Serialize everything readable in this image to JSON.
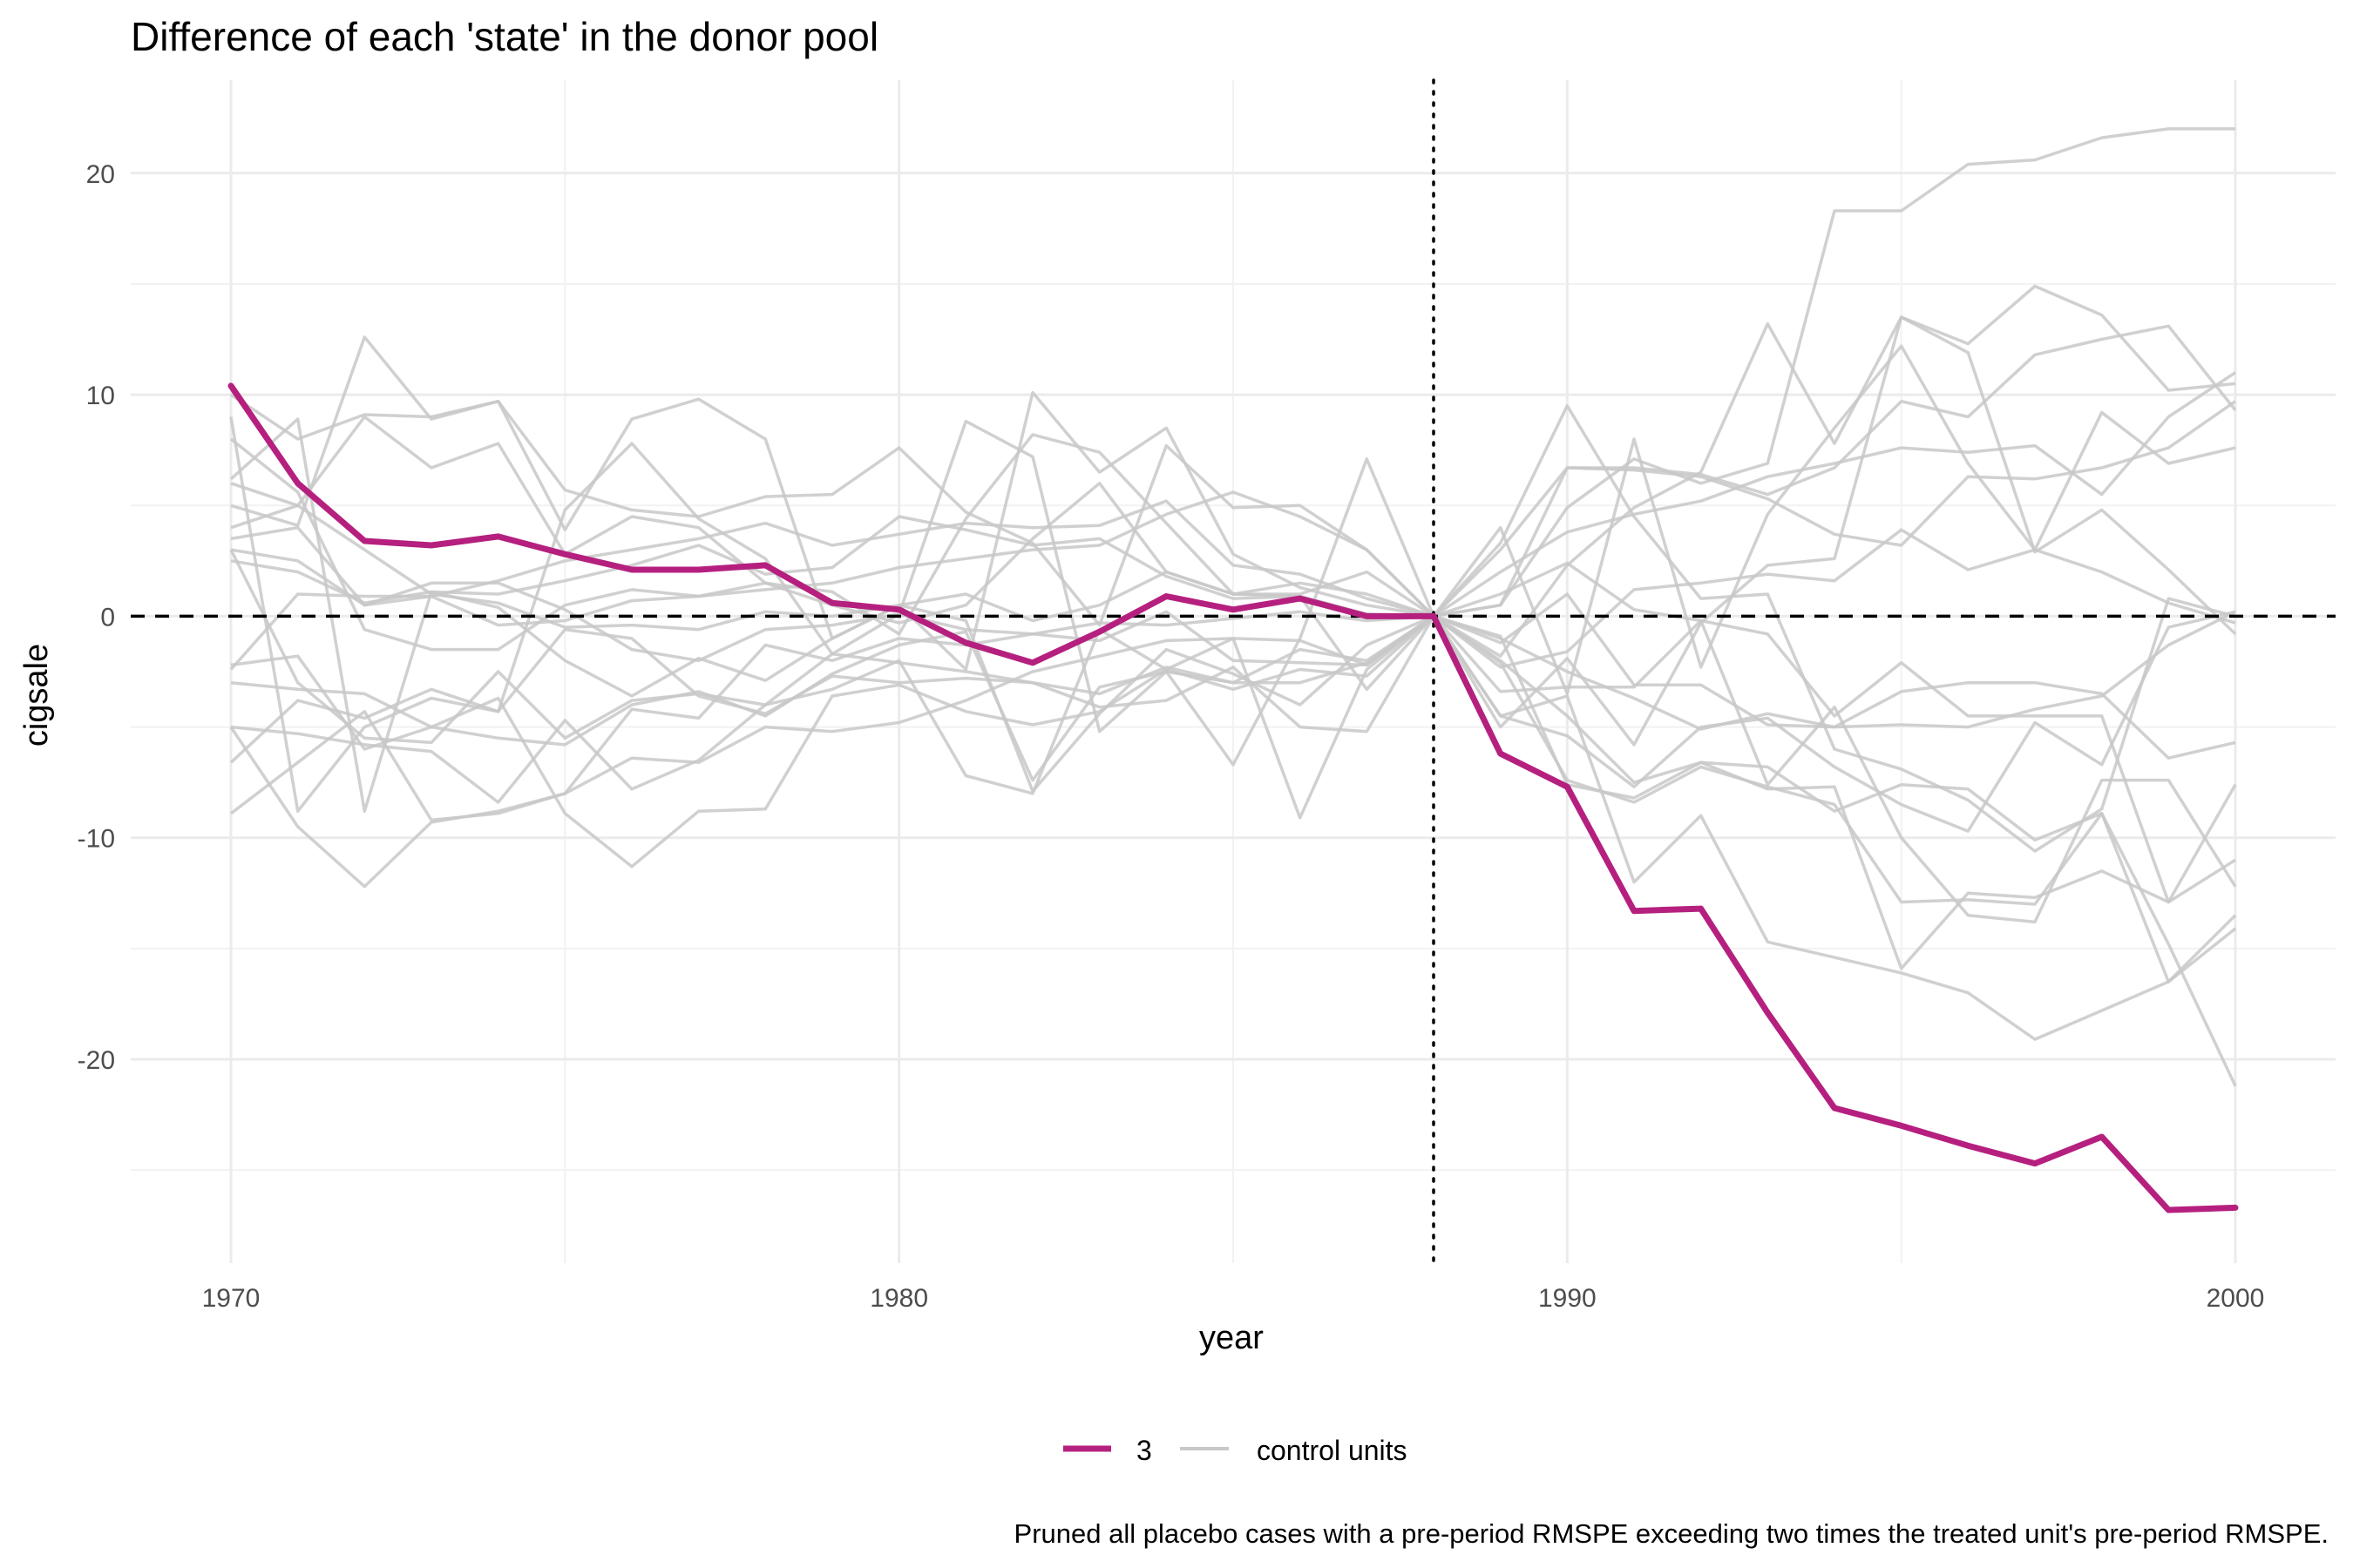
{
  "chart_data": {
    "type": "line",
    "title": "Difference of each 'state' in the donor pool",
    "xlabel": "year",
    "ylabel": "cigsale",
    "caption": "Pruned all placebo cases with a pre-period RMSPE exceeding two times the treated unit's pre-period RMSPE.",
    "xlim": [
      1968.5,
      2001.5
    ],
    "ylim": [
      -29.2,
      24.2
    ],
    "x_ticks": [
      1970,
      1980,
      1990,
      2000
    ],
    "y_ticks": [
      -20,
      -10,
      0,
      10,
      20
    ],
    "x_tick_labels": [
      "1970",
      "1980",
      "1990",
      "2000"
    ],
    "y_tick_labels": [
      "-20",
      "-10",
      "0",
      "10",
      "20"
    ],
    "grid": true,
    "legend_position": "bottom",
    "legend": [
      {
        "label": "3",
        "color": "#b5207f"
      },
      {
        "label": "control units",
        "color": "#c8c8c8"
      }
    ],
    "reference_lines": {
      "hline_y": 0,
      "hline_style": "dashed",
      "vline_x": 1988,
      "vline_style": "dotted"
    },
    "x": [
      1970,
      1971,
      1972,
      1973,
      1974,
      1975,
      1976,
      1977,
      1978,
      1979,
      1980,
      1981,
      1982,
      1983,
      1984,
      1985,
      1986,
      1987,
      1988,
      1989,
      1990,
      1991,
      1992,
      1993,
      1994,
      1995,
      1996,
      1997,
      1998,
      1999,
      2000
    ],
    "treated": {
      "name": "3",
      "color": "#b5207f",
      "values": [
        10.4,
        6.0,
        3.4,
        3.2,
        3.6,
        2.8,
        2.1,
        2.1,
        2.3,
        0.6,
        0.3,
        -1.2,
        -2.1,
        -0.7,
        0.9,
        0.3,
        0.8,
        0.0,
        0.0,
        -6.2,
        -7.7,
        -13.3,
        -13.2,
        -17.9,
        -22.2,
        -23.0,
        -23.9,
        -24.7,
        -23.5,
        -26.8,
        -26.7
      ]
    },
    "controls": {
      "color": "#c8c8c8",
      "series": [
        [
          6.0,
          5.0,
          9.0,
          6.7,
          7.8,
          2.8,
          4.5,
          4.0,
          1.5,
          0.5,
          -0.3,
          0.5,
          3.5,
          6.0,
          2.0,
          1.0,
          1.0,
          2.0,
          0.0,
          2.0,
          3.8,
          4.6,
          5.2,
          6.3,
          6.9,
          7.6,
          7.4,
          7.7,
          5.5,
          9.0,
          11.0
        ],
        [
          4.0,
          5.0,
          3.0,
          1.0,
          0.6,
          -0.5,
          -0.4,
          -0.6,
          0.2,
          0.0,
          0.5,
          1.0,
          -0.2,
          0.5,
          2.0,
          1.0,
          1.5,
          1.0,
          0.0,
          0.5,
          6.7,
          6.6,
          6.3,
          5.3,
          3.7,
          3.2,
          6.3,
          6.2,
          6.7,
          7.6,
          9.7
        ],
        [
          3.5,
          4.0,
          0.5,
          0.9,
          1.6,
          2.5,
          3.0,
          3.5,
          4.2,
          3.2,
          3.7,
          4.2,
          4.0,
          4.1,
          5.2,
          2.3,
          1.9,
          0.8,
          0.0,
          3.0,
          6.7,
          6.7,
          6.4,
          5.5,
          6.7,
          9.7,
          9.0,
          11.8,
          12.5,
          13.1,
          9.3
        ],
        [
          10.0,
          8.0,
          9.1,
          9.0,
          9.7,
          5.7,
          4.8,
          4.5,
          5.4,
          5.5,
          7.6,
          4.7,
          3.3,
          -0.4,
          7.7,
          4.9,
          5.0,
          3.0,
          0.0,
          -1.8,
          2.3,
          4.9,
          6.5,
          13.2,
          7.8,
          13.5,
          12.3,
          14.9,
          13.6,
          10.2,
          10.5
        ],
        [
          9.0,
          -8.8,
          -5.0,
          -3.7,
          -4.3,
          4.8,
          7.8,
          4.4,
          2.6,
          -1.7,
          0.1,
          8.8,
          7.2,
          -5.2,
          -2.5,
          -6.7,
          -1.0,
          7.1,
          0.0,
          4.0,
          -3.5,
          8.0,
          -2.3,
          4.6,
          8.5,
          12.2,
          6.9,
          3.0,
          9.2,
          6.9,
          7.6
        ],
        [
          5.0,
          4.1,
          12.6,
          8.9,
          9.7,
          3.9,
          8.9,
          9.8,
          8.0,
          -1.0,
          0.5,
          -2.4,
          10.1,
          6.5,
          8.5,
          2.8,
          1.3,
          0.5,
          0.0,
          -5.0,
          -1.9,
          -5.8,
          -0.3,
          2.3,
          2.6,
          13.5,
          11.9,
          2.9,
          4.8,
          2.1,
          -0.8
        ],
        [
          3.0,
          -3.0,
          -5.5,
          -5.7,
          -2.5,
          -5.5,
          -3.8,
          -3.5,
          -4.0,
          -1.7,
          -2.1,
          -2.5,
          -3.0,
          -3.5,
          -2.3,
          -3.0,
          -1.5,
          -2.0,
          0.0,
          -1.2,
          1.0,
          -3.1,
          -3.1,
          -4.9,
          -5.0,
          -4.9,
          -5.0,
          -4.2,
          -3.6,
          -1.3,
          0.2
        ],
        [
          -2.2,
          -1.8,
          -6.0,
          -5.0,
          -5.5,
          -5.8,
          -4.0,
          -3.4,
          -4.5,
          -2.6,
          -1.3,
          -0.7,
          -7.4,
          -3.2,
          -2.5,
          -3.0,
          -3.0,
          -2.1,
          0.0,
          -1.0,
          -2.5,
          -3.7,
          -5.1,
          -4.4,
          -5.0,
          -3.4,
          -3.0,
          -3.0,
          -3.5,
          -6.4,
          -5.7
        ],
        [
          -6.6,
          -3.8,
          -4.6,
          -3.3,
          -4.3,
          -0.6,
          -1.0,
          -3.6,
          -4.4,
          -2.7,
          -3.0,
          -2.8,
          -3.0,
          -4.1,
          -3.8,
          -2.3,
          -5.0,
          -5.2,
          0.0,
          -2.0,
          -4.5,
          -7.5,
          -6.6,
          -7.8,
          -7.7,
          -15.9,
          -12.5,
          -12.7,
          -11.5,
          -12.9,
          -7.6
        ],
        [
          -3.0,
          -3.3,
          -3.5,
          -5.0,
          -3.7,
          -8.9,
          -11.3,
          -8.8,
          -8.7,
          -3.6,
          -3.1,
          -4.3,
          -4.9,
          -4.3,
          -2.4,
          -3.3,
          -2.4,
          -2.7,
          0.0,
          -3.4,
          -3.2,
          -3.2,
          -0.2,
          -7.6,
          -4.1,
          -10.0,
          -13.5,
          -13.8,
          -7.4,
          -7.4,
          -12.2
        ],
        [
          -5.0,
          -5.3,
          -5.8,
          -6.1,
          -8.4,
          -4.7,
          -7.8,
          -6.5,
          -4.0,
          -3.3,
          -2.0,
          -7.2,
          -8.0,
          -0.6,
          -2.4,
          -1.0,
          -9.1,
          -2.4,
          0.0,
          -2.1,
          -7.4,
          -8.4,
          -6.8,
          -7.7,
          -8.5,
          -12.9,
          -12.8,
          -13.0,
          -8.9,
          -14.8,
          -21.2
        ],
        [
          -8.9,
          -6.6,
          -4.3,
          -9.2,
          -8.9,
          -8.0,
          -6.4,
          -6.6,
          -5.0,
          -5.2,
          -4.8,
          -3.8,
          -2.5,
          -1.8,
          -1.1,
          -1.0,
          -1.1,
          -2.2,
          0.0,
          -4.5,
          -3.6,
          -12.0,
          -9.0,
          -14.7,
          -15.4,
          -16.1,
          -17.0,
          -19.1,
          -17.8,
          -16.5,
          -14.1
        ],
        [
          -5.0,
          -9.5,
          -12.2,
          -9.3,
          -8.8,
          -8.0,
          -4.2,
          -4.6,
          -1.3,
          -2.0,
          -1.0,
          -1.3,
          -0.8,
          -1.1,
          0.2,
          -2.0,
          -2.1,
          -2.2,
          0.0,
          -0.9,
          -7.6,
          -8.2,
          -6.6,
          -6.8,
          -8.8,
          -7.6,
          -7.8,
          -10.1,
          -8.9,
          -16.5,
          -13.5
        ],
        [
          2.5,
          2.0,
          0.6,
          1.1,
          1.0,
          1.6,
          2.3,
          3.2,
          1.9,
          2.2,
          4.5,
          3.9,
          3.2,
          3.5,
          1.8,
          0.8,
          0.9,
          0.1,
          0.0,
          1.0,
          2.4,
          0.3,
          -0.2,
          -0.8,
          -4.5,
          -2.1,
          -4.5,
          -4.5,
          -4.5,
          -12.9,
          -11.0
        ],
        [
          6.2,
          8.9,
          -8.8,
          1.1,
          0.4,
          -2.0,
          -3.6,
          -1.9,
          -2.9,
          -1.0,
          0.5,
          -0.2,
          -7.9,
          -4.4,
          -1.5,
          -2.6,
          -4.0,
          -1.3,
          0.0,
          -4.5,
          -5.4,
          -7.7,
          -5.0,
          -4.6,
          -6.8,
          -8.5,
          -9.7,
          -4.8,
          -6.7,
          -0.5,
          0.2
        ],
        [
          8.0,
          5.6,
          -0.6,
          -1.5,
          -1.5,
          0.5,
          1.2,
          0.9,
          1.5,
          1.1,
          -0.8,
          4.4,
          8.2,
          7.4,
          4.2,
          1.0,
          0.9,
          -3.3,
          0.0,
          3.3,
          9.5,
          4.5,
          0.8,
          1.0,
          -6.0,
          -6.9,
          -8.3,
          -10.6,
          -8.7,
          0.8,
          0.0
        ],
        [
          3.0,
          2.5,
          0.5,
          1.5,
          1.5,
          0.3,
          -1.5,
          -2.0,
          -0.6,
          -0.4,
          0.1,
          -0.6,
          -0.8,
          -0.3,
          -0.4,
          -0.1,
          0.2,
          -0.2,
          0.0,
          -2.3,
          -1.6,
          1.2,
          1.5,
          1.9,
          1.6,
          3.9,
          2.1,
          3.0,
          2.0,
          0.6,
          -0.3
        ],
        [
          -2.4,
          1.0,
          0.9,
          0.9,
          -0.4,
          -0.2,
          0.7,
          0.9,
          1.2,
          1.5,
          2.2,
          2.6,
          3.0,
          3.2,
          4.6,
          5.6,
          4.5,
          3.0,
          0.0,
          0.5,
          4.9,
          7.1,
          6.0,
          6.9,
          18.3,
          18.3,
          20.4,
          20.6,
          21.6,
          22.0,
          22.0
        ]
      ]
    }
  }
}
